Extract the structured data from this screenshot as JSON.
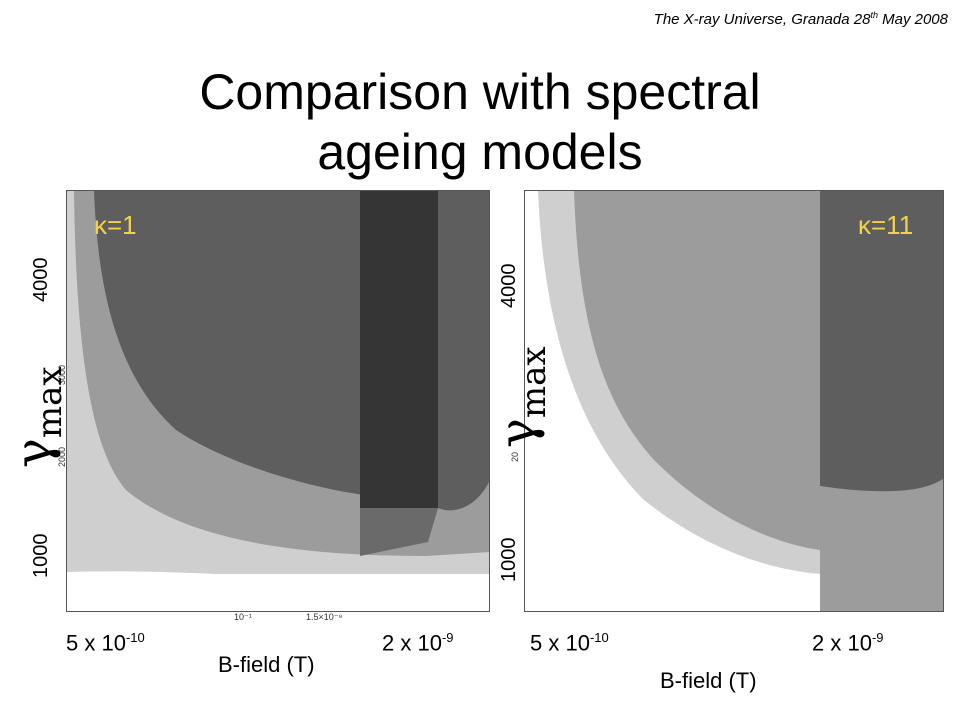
{
  "conference": {
    "text": "The X-ray Universe, Granada 28",
    "sup": "th",
    "rest": " May 2008"
  },
  "title_line1": "Comparison with spectral",
  "title_line2": "ageing models",
  "colors": {
    "kappa_label": "#f2d24a",
    "white": "#ffffff",
    "light": "#cfcfcf",
    "medium": "#9c9c9c",
    "dark": "#5e5e5e",
    "darkest": "#353535"
  },
  "chart_data": [
    {
      "type": "heatmap",
      "kappa_label": "κ=1",
      "ylabel": "γ",
      "ylabel_sub": "max",
      "y_ticks": [
        "1000",
        "4000"
      ],
      "x_ticks_major": [
        {
          "base": "5 x 10",
          "exp": "-10"
        },
        {
          "base": "2 x 10",
          "exp": "-9"
        }
      ],
      "x_ticks_minor": [
        "10⁻¹",
        "1.5×10⁻⁹"
      ],
      "y_ticks_minor": [
        "3000",
        "2000"
      ],
      "xlabel": "B-field (T)",
      "regions": [
        "white",
        "light",
        "medium",
        "dark",
        "darkest"
      ]
    },
    {
      "type": "heatmap",
      "kappa_label": "κ=11",
      "ylabel": "γ",
      "ylabel_sub": "max",
      "y_ticks": [
        "1000",
        "4000"
      ],
      "x_ticks_major": [
        {
          "base": "5 x 10",
          "exp": "-10"
        },
        {
          "base": "2 x 10",
          "exp": "-9"
        }
      ],
      "y_ticks_minor": [
        "20"
      ],
      "xlabel": "B-field (T)",
      "regions": [
        "white",
        "light",
        "medium",
        "dark"
      ]
    }
  ]
}
